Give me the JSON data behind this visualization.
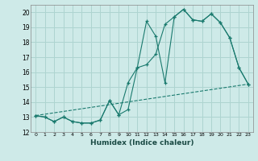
{
  "xlabel": "Humidex (Indice chaleur)",
  "bg_color": "#ceeae8",
  "grid_color": "#aed4d0",
  "line_color": "#1a7a6e",
  "xlim": [
    -0.5,
    23.5
  ],
  "ylim": [
    12,
    20.5
  ],
  "yticks": [
    12,
    13,
    14,
    15,
    16,
    17,
    18,
    19,
    20
  ],
  "xticks": [
    0,
    1,
    2,
    3,
    4,
    5,
    6,
    7,
    8,
    9,
    10,
    11,
    12,
    13,
    14,
    15,
    16,
    17,
    18,
    19,
    20,
    21,
    22,
    23
  ],
  "line1_x": [
    0,
    1,
    2,
    3,
    4,
    5,
    6,
    7,
    8,
    9,
    10,
    11,
    12,
    13,
    14,
    15,
    16,
    17,
    18,
    19,
    20,
    21,
    22,
    23
  ],
  "line1_y": [
    13.1,
    13.0,
    12.7,
    13.0,
    12.7,
    12.6,
    12.6,
    12.8,
    14.1,
    13.15,
    13.5,
    16.3,
    19.4,
    18.4,
    15.3,
    19.7,
    20.2,
    19.5,
    19.4,
    19.9,
    19.3,
    18.3,
    16.3,
    15.2
  ],
  "line2_x": [
    0,
    1,
    2,
    3,
    4,
    5,
    6,
    7,
    8,
    9,
    10,
    11,
    12,
    13,
    14,
    15,
    16,
    17,
    18,
    19,
    20,
    21,
    22,
    23
  ],
  "line2_y": [
    13.1,
    13.0,
    12.7,
    13.0,
    12.7,
    12.6,
    12.6,
    12.8,
    14.1,
    13.15,
    15.3,
    16.3,
    16.5,
    17.2,
    19.2,
    19.7,
    20.2,
    19.5,
    19.4,
    19.9,
    19.3,
    18.3,
    16.3,
    15.2
  ],
  "line3_x": [
    0,
    23
  ],
  "line3_y": [
    13.1,
    15.2
  ]
}
